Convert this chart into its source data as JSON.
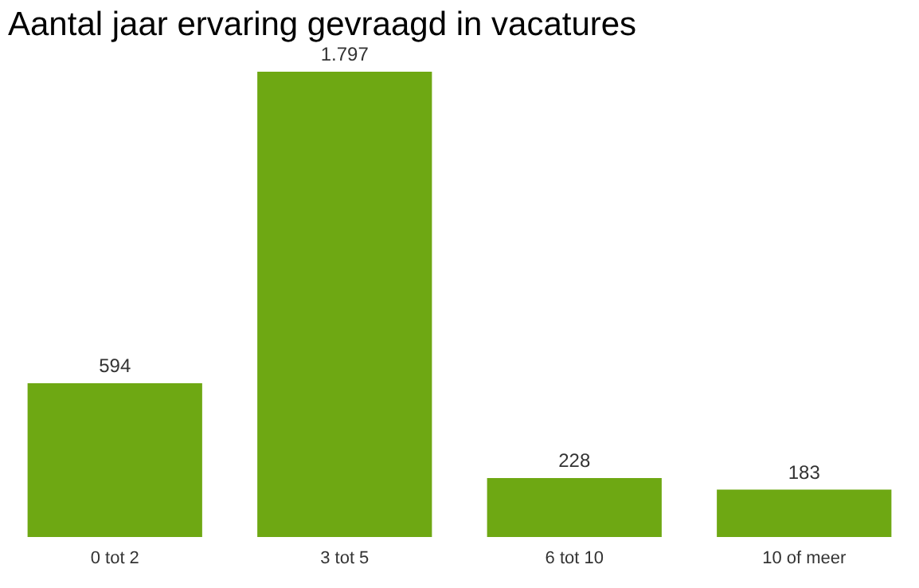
{
  "chart_data": {
    "type": "bar",
    "title": "Aantal jaar ervaring gevraagd in vacatures",
    "categories": [
      "0 tot 2",
      "3 tot 5",
      "6 tot 10",
      "10 of meer"
    ],
    "values": [
      594,
      1797,
      228,
      183
    ],
    "value_labels": [
      "594",
      "1.797",
      "228",
      "183"
    ],
    "color": "#6ea813",
    "tick_labels": "x"
  }
}
